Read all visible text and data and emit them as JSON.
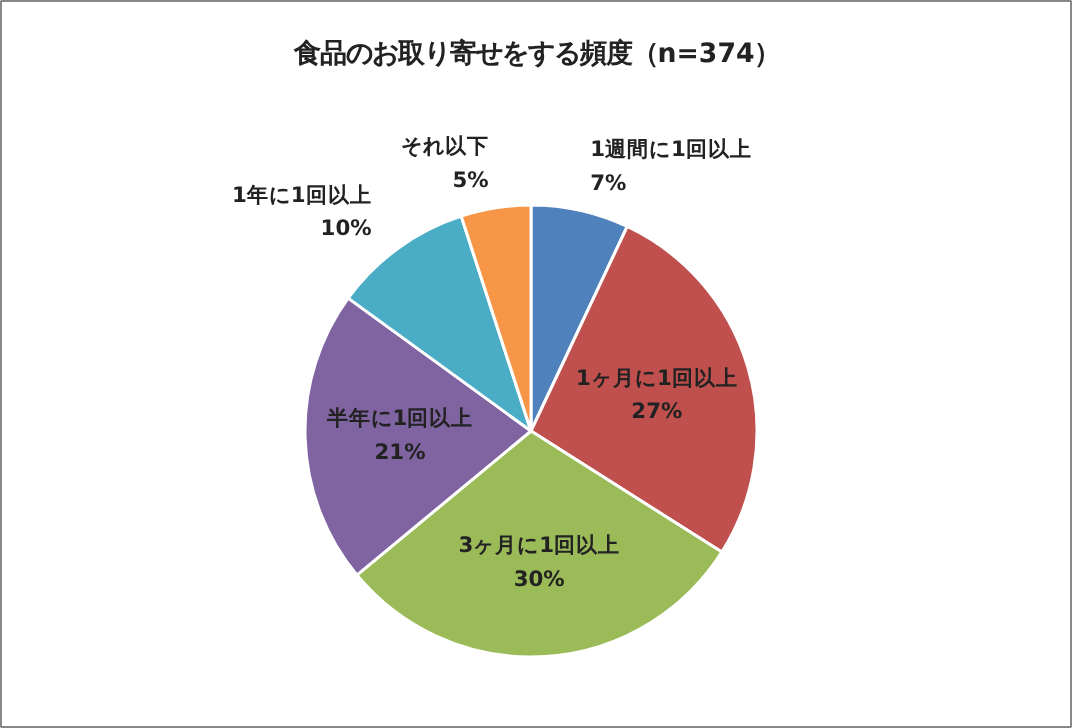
{
  "chart_data": {
    "type": "pie",
    "title": "食品のお取り寄せをする頻度（n=374）",
    "categories": [
      "1週間に1回以上",
      "1ヶ月に1回以上",
      "3ヶ月に1回以上",
      "半年に1回以上",
      "1年に1回以上",
      "それ以下"
    ],
    "values": [
      7,
      27,
      30,
      21,
      10,
      5
    ],
    "value_labels": [
      "7%",
      "27%",
      "30%",
      "21%",
      "10%",
      "5%"
    ],
    "colors": [
      "#4f81bd",
      "#c0504d",
      "#9bbb59",
      "#8064a2",
      "#4bacc6",
      "#f79646"
    ]
  }
}
